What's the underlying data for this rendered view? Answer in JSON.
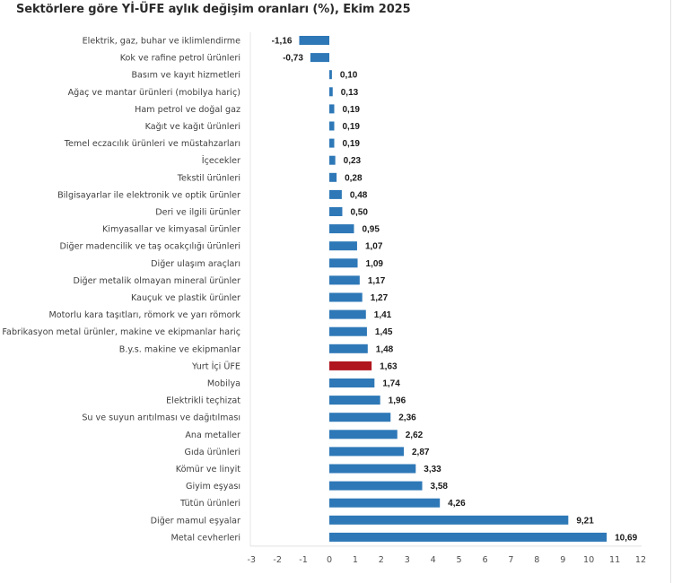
{
  "chart_data": {
    "type": "bar",
    "orientation": "horizontal",
    "title": "Sektörlere göre Yİ-ÜFE aylık değişim oranları (%), Ekim 2025",
    "xlabel": "",
    "ylabel": "",
    "xlim": [
      -3,
      12
    ],
    "x_ticks": [
      "-3",
      "-2",
      "-1",
      "0",
      "1",
      "2",
      "3",
      "4",
      "5",
      "6",
      "7",
      "8",
      "9",
      "10",
      "11",
      "12"
    ],
    "grid": false,
    "legend": null,
    "colors": {
      "default": "#2E78B7",
      "highlight": "#B0161E"
    },
    "categories": [
      "Elektrik, gaz, buhar ve iklimlendirme",
      "Kok ve rafine petrol ürünleri",
      "Basım ve kayıt hizmetleri",
      "Ağaç ve mantar ürünleri (mobilya hariç)",
      "Ham petrol ve doğal gaz",
      "Kağıt ve kağıt ürünleri",
      "Temel eczacılık ürünleri ve müstahzarları",
      "İçecekler",
      "Tekstil ürünleri",
      "Bilgisayarlar ile elektronik ve optik ürünler",
      "Deri ve ilgili ürünler",
      "Kimyasallar ve kimyasal ürünler",
      "Diğer madencilik ve taş ocakçılığı ürünleri",
      "Diğer ulaşım araçları",
      "Diğer metalik olmayan mineral ürünler",
      "Kauçuk ve plastik ürünler",
      "Motorlu kara taşıtları, römork ve yarı römork",
      "Fabrikasyon metal ürünler, makine ve ekipmanlar hariç",
      "B.y.s. makine ve ekipmanlar",
      "Yurt İçi ÜFE",
      "Mobilya",
      "Elektrikli teçhizat",
      "Su ve suyun arıtılması ve dağıtılması",
      "Ana metaller",
      "Gıda ürünleri",
      "Kömür ve linyit",
      "Giyim eşyası",
      "Tütün ürünleri",
      "Diğer mamul eşyalar",
      "Metal cevherleri"
    ],
    "values": [
      -1.16,
      -0.73,
      0.1,
      0.13,
      0.19,
      0.19,
      0.19,
      0.23,
      0.28,
      0.48,
      0.5,
      0.95,
      1.07,
      1.09,
      1.17,
      1.27,
      1.41,
      1.45,
      1.48,
      1.63,
      1.74,
      1.96,
      2.36,
      2.62,
      2.87,
      3.33,
      3.58,
      4.26,
      9.21,
      10.69
    ],
    "value_labels": [
      "-1,16",
      "-0,73",
      "0,10",
      "0,13",
      "0,19",
      "0,19",
      "0,19",
      "0,23",
      "0,28",
      "0,48",
      "0,50",
      "0,95",
      "1,07",
      "1,09",
      "1,17",
      "1,27",
      "1,41",
      "1,45",
      "1,48",
      "1,63",
      "1,74",
      "1,96",
      "2,36",
      "2,62",
      "2,87",
      "3,33",
      "3,58",
      "4,26",
      "9,21",
      "10,69"
    ],
    "highlighted_category": "Yurt İçi ÜFE"
  }
}
